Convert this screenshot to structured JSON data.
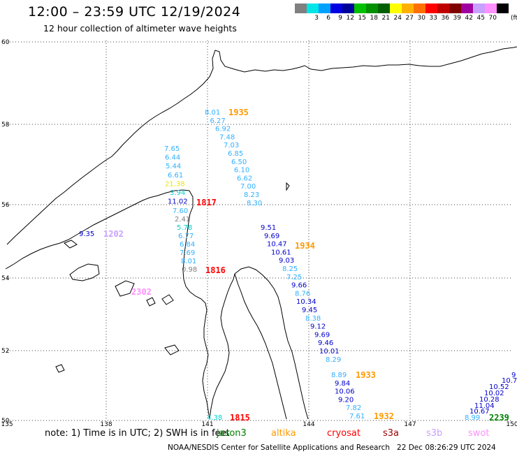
{
  "header": {
    "title": "12:00 – 23:59 UTC 12/19/2024",
    "subtitle": "12 hour collection of altimeter wave heights"
  },
  "legend": {
    "unit": "(ft)",
    "entries": [
      {
        "label": "",
        "color": "#808080"
      },
      {
        "label": "3",
        "color": "#00e5e5"
      },
      {
        "label": "6",
        "color": "#00a0ff"
      },
      {
        "label": "9",
        "color": "#0000e0"
      },
      {
        "label": "12",
        "color": "#00009a"
      },
      {
        "label": "15",
        "color": "#00c000"
      },
      {
        "label": "18",
        "color": "#009000"
      },
      {
        "label": "21",
        "color": "#006000"
      },
      {
        "label": "24",
        "color": "#ffff00"
      },
      {
        "label": "27",
        "color": "#ffb000"
      },
      {
        "label": "30",
        "color": "#ff7000"
      },
      {
        "label": "33",
        "color": "#ff0000"
      },
      {
        "label": "36",
        "color": "#c00000"
      },
      {
        "label": "39",
        "color": "#800000"
      },
      {
        "label": "42",
        "color": "#a000a0"
      },
      {
        "label": "45",
        "color": "#c8a0ff"
      },
      {
        "label": "70",
        "color": "#ff90ff"
      },
      {
        "label": "",
        "color": "#000000"
      }
    ]
  },
  "map": {
    "lon_ticks": [
      "135",
      "138",
      "141",
      "144",
      "147",
      "150"
    ],
    "lat_ticks": [
      "60",
      "58",
      "56",
      "54",
      "52",
      "50"
    ]
  },
  "tracks": [
    {
      "time": "1935",
      "time_color": "#ff9900",
      "labels": [
        {
          "text": "8.01",
          "color": "#30b0ff"
        },
        {
          "text": "6.27",
          "color": "#30b0ff"
        },
        {
          "text": "6.92",
          "color": "#30b0ff"
        },
        {
          "text": "7.48",
          "color": "#30b0ff"
        },
        {
          "text": "7.03",
          "color": "#30b0ff"
        },
        {
          "text": "6.85",
          "color": "#30b0ff"
        },
        {
          "text": "6.50",
          "color": "#30b0ff"
        },
        {
          "text": "6.10",
          "color": "#30b0ff"
        },
        {
          "text": "6.62",
          "color": "#30b0ff"
        },
        {
          "text": "7.00",
          "color": "#30b0ff"
        },
        {
          "text": "8.23",
          "color": "#30b0ff"
        },
        {
          "text": "8.30",
          "color": "#30b0ff"
        }
      ]
    },
    {
      "time": "1934",
      "time_color": "#ff9900",
      "labels": [
        {
          "text": "9.51",
          "color": "#0000cc"
        },
        {
          "text": "9.69",
          "color": "#0000cc"
        },
        {
          "text": "10.47",
          "color": "#0000cc"
        },
        {
          "text": "10.61",
          "color": "#0000cc"
        },
        {
          "text": "9.03",
          "color": "#0000cc"
        },
        {
          "text": "8.25",
          "color": "#30b0ff"
        },
        {
          "text": "7.25",
          "color": "#30b0ff"
        },
        {
          "text": "9.66",
          "color": "#0000cc"
        },
        {
          "text": "8.76",
          "color": "#30b0ff"
        },
        {
          "text": "10.34",
          "color": "#0000cc"
        },
        {
          "text": "9.45",
          "color": "#0000cc"
        },
        {
          "text": "8.38",
          "color": "#30b0ff"
        },
        {
          "text": "9.12",
          "color": "#0000cc"
        },
        {
          "text": "9.69",
          "color": "#0000cc"
        },
        {
          "text": "9.46",
          "color": "#0000cc"
        },
        {
          "text": "10.01",
          "color": "#0000cc"
        },
        {
          "text": "8.29",
          "color": "#30b0ff"
        }
      ]
    },
    {
      "time": "1933",
      "time_color": "#ff9900",
      "labels": [
        {
          "text": "8.89",
          "color": "#30b0ff"
        },
        {
          "text": "9.84",
          "color": "#0000cc"
        },
        {
          "text": "10.06",
          "color": "#0000cc"
        },
        {
          "text": "9.20",
          "color": "#0000cc"
        },
        {
          "text": "7.82",
          "color": "#30b0ff"
        },
        {
          "text": "7.61",
          "color": "#30b0ff"
        }
      ]
    },
    {
      "time": "1932",
      "time_color": "#ff9900",
      "labels": []
    },
    {
      "time": "1817",
      "time_color": "#ff0000",
      "labels": [
        {
          "text": "7.65",
          "color": "#30b0ff"
        },
        {
          "text": "6.44",
          "color": "#30b0ff"
        },
        {
          "text": "5.44",
          "color": "#30b0ff"
        },
        {
          "text": "6.61",
          "color": "#30b0ff"
        },
        {
          "text": "21.38",
          "color": "#e8e800"
        },
        {
          "text": "3.94",
          "color": "#00d0d0"
        },
        {
          "text": "11.02",
          "color": "#0000cc"
        }
      ]
    },
    {
      "time": "1816",
      "time_color": "#ff0000",
      "labels": [
        {
          "text": "7.60",
          "color": "#30b0ff"
        },
        {
          "text": "2.41",
          "color": "#808080"
        },
        {
          "text": "5.78",
          "color": "#00d0d0"
        },
        {
          "text": "6.77",
          "color": "#30b0ff"
        },
        {
          "text": "6.84",
          "color": "#30b0ff"
        },
        {
          "text": "7.69",
          "color": "#30b0ff"
        },
        {
          "text": "8.01",
          "color": "#30b0ff"
        },
        {
          "text": "0.98",
          "color": "#808080"
        }
      ]
    },
    {
      "time": "1815",
      "time_color": "#ff0000",
      "labels": [
        {
          "text": "4.38",
          "color": "#00d0d0"
        }
      ]
    },
    {
      "time": "1202",
      "time_color": "#c8a0ff",
      "labels": [
        {
          "text": "9.35",
          "color": "#0000cc"
        }
      ]
    },
    {
      "time": "2302",
      "time_color": "#ff90ff",
      "labels": []
    },
    {
      "time": "2239",
      "time_color": "#008000",
      "labels": [
        {
          "text": "8.99",
          "color": "#30b0ff"
        },
        {
          "text": "10.67",
          "color": "#0000cc"
        },
        {
          "text": "11.04",
          "color": "#0000cc"
        },
        {
          "text": "10.28",
          "color": "#0000cc"
        },
        {
          "text": "10.02",
          "color": "#0000cc"
        },
        {
          "text": "10.52",
          "color": "#0000cc"
        },
        {
          "text": "10.7",
          "color": "#0000cc"
        },
        {
          "text": "9",
          "color": "#0000cc"
        }
      ]
    }
  ],
  "note": {
    "text": "note:  1) Time is in UTC; 2) SWH is in feet",
    "satellites": [
      {
        "name": "jason3",
        "color": "#008000"
      },
      {
        "name": "altika",
        "color": "#ff9900"
      },
      {
        "name": "cryosat",
        "color": "#ff0000"
      },
      {
        "name": "s3a",
        "color": "#990000"
      },
      {
        "name": "s3b",
        "color": "#c8a0ff"
      },
      {
        "name": "swot",
        "color": "#ff90ff"
      }
    ]
  },
  "footer": {
    "credit": "NOAA/NESDIS Center for Satellite Applications and Research",
    "generated": "22 Dec 08:26:29 UTC 2024"
  }
}
